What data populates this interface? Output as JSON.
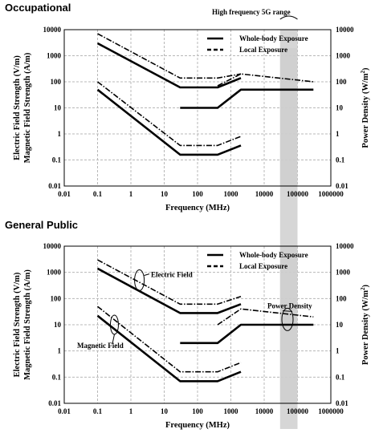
{
  "highlight_label": "High frequency 5G range",
  "highlight_range_mhz": [
    30000,
    100000
  ],
  "chart_data": [
    {
      "type": "line",
      "title": "Occupational",
      "xlabel": "Frequency (MHz)",
      "ylabel_left_line1": "Electric Field Strength (V/m)",
      "ylabel_left_line2": "Magnetic Field Strength (A/m)",
      "ylabel_right": "Power Density (W/m",
      "ylabel_right_sup": "2",
      "ylabel_right_end": ")",
      "x_scale": "log",
      "y_scale": "log",
      "xlim": [
        0.01,
        1000000
      ],
      "ylim": [
        0.01,
        10000
      ],
      "x_ticks": [
        "0.01",
        "0.1",
        "1",
        "10",
        "100",
        "1000",
        "10000",
        "100000",
        "1000000"
      ],
      "y_ticks_left": [
        "10000",
        "1000",
        "100",
        "10",
        "1",
        "0.1",
        "0.01"
      ],
      "y_ticks_right": [
        "10000",
        "1000",
        "100",
        "10",
        "1",
        "0.1",
        "0.01"
      ],
      "grid": true,
      "legend": {
        "position": "top-right",
        "solid": "Whole-body Exposure",
        "dashed": "Local Exposure"
      },
      "annotations": [],
      "series": [
        {
          "style": "solid",
          "x": [
            0.1,
            30,
            400,
            2000
          ],
          "y": [
            3000,
            61,
            61,
            140
          ]
        },
        {
          "style": "dashdot",
          "x": [
            0.1,
            30,
            400,
            2000
          ],
          "y": [
            7000,
            140,
            140,
            200
          ]
        },
        {
          "style": "solid",
          "x": [
            30,
            400,
            2000,
            300000
          ],
          "y": [
            10,
            10,
            50,
            50
          ]
        },
        {
          "style": "dashdot",
          "x": [
            400,
            2000,
            300000
          ],
          "y": [
            70,
            200,
            100
          ]
        },
        {
          "style": "solid",
          "x": [
            0.1,
            30,
            400,
            2000
          ],
          "y": [
            50,
            0.16,
            0.16,
            0.36
          ]
        },
        {
          "style": "dashdot",
          "x": [
            0.1,
            30,
            400,
            2000
          ],
          "y": [
            100,
            0.36,
            0.36,
            0.8
          ]
        }
      ]
    },
    {
      "type": "line",
      "title": "General Public",
      "xlabel": "Frequency (MHz)",
      "ylabel_left_line1": "Electric Field Strength (V/m)",
      "ylabel_left_line2": "Magnetic Field Strength (A/m)",
      "ylabel_right": "Power Density (W/m",
      "ylabel_right_sup": "2",
      "ylabel_right_end": ")",
      "x_scale": "log",
      "y_scale": "log",
      "xlim": [
        0.01,
        1000000
      ],
      "ylim": [
        0.01,
        10000
      ],
      "x_ticks": [
        "0.01",
        "0.1",
        "1",
        "10",
        "100",
        "1000",
        "10000",
        "100000",
        "1000000"
      ],
      "y_ticks_left": [
        "10000",
        "1000",
        "100",
        "10",
        "1",
        "0.1",
        "0.01"
      ],
      "y_ticks_right": [
        "10000",
        "1000",
        "100",
        "10",
        "1",
        "0.1",
        "0.01"
      ],
      "grid": true,
      "legend": {
        "position": "top-right",
        "solid": "Whole-body Exposure",
        "dashed": "Local Exposure"
      },
      "annotations": [
        {
          "text": "Electric Field"
        },
        {
          "text": "Magnetic Field"
        },
        {
          "text": "Power Density"
        }
      ],
      "series": [
        {
          "style": "solid",
          "x": [
            0.1,
            30,
            400,
            2000
          ],
          "y": [
            1400,
            28,
            28,
            61
          ]
        },
        {
          "style": "dashdot",
          "x": [
            0.1,
            30,
            400,
            2000
          ],
          "y": [
            3000,
            61,
            61,
            120
          ]
        },
        {
          "style": "solid",
          "x": [
            30,
            400,
            2000,
            300000
          ],
          "y": [
            2,
            2,
            10,
            10
          ]
        },
        {
          "style": "dashdot",
          "x": [
            400,
            2000,
            300000
          ],
          "y": [
            10,
            40,
            20
          ]
        },
        {
          "style": "solid",
          "x": [
            0.1,
            30,
            400,
            2000
          ],
          "y": [
            22,
            0.07,
            0.07,
            0.16
          ]
        },
        {
          "style": "dashdot",
          "x": [
            0.1,
            30,
            400,
            2000
          ],
          "y": [
            50,
            0.16,
            0.16,
            0.36
          ]
        }
      ]
    }
  ]
}
